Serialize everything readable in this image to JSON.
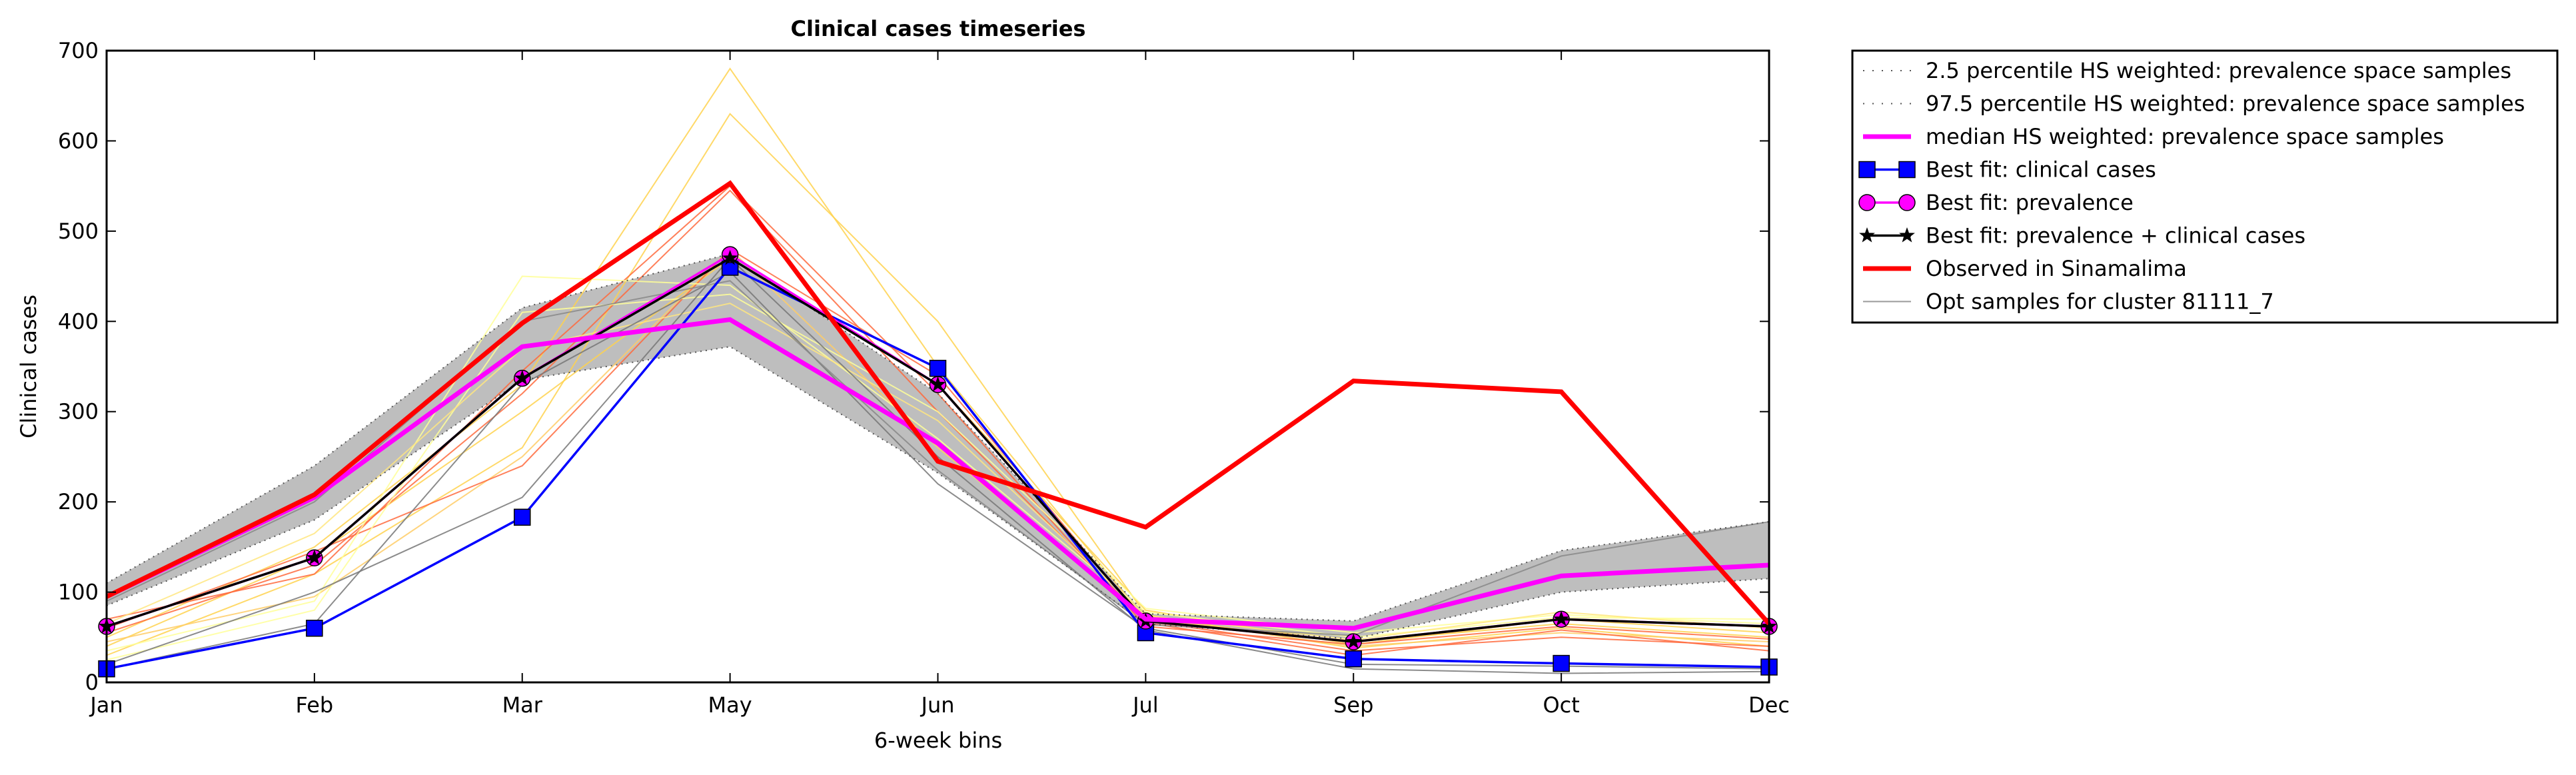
{
  "chart_data": {
    "type": "line",
    "title": "Clinical cases timeseries",
    "xlabel": "6-week bins",
    "ylabel": "Clinical cases",
    "categories": [
      "Jan",
      "Feb",
      "Mar",
      "May",
      "Jun",
      "Jul",
      "Sep",
      "Oct",
      "Dec"
    ],
    "ylim": [
      0,
      700
    ],
    "yticks": [
      0,
      100,
      200,
      300,
      400,
      500,
      600,
      700
    ],
    "grid": false,
    "legend_position": "outside-top-right",
    "band": {
      "lower": [
        85,
        180,
        335,
        372,
        232,
        65,
        48,
        100,
        115
      ],
      "upper": [
        110,
        240,
        415,
        475,
        320,
        76,
        68,
        146,
        178
      ],
      "color": "#bebebe"
    },
    "samples": [
      {
        "color": "#ffd24d",
        "values": [
          40,
          140,
          300,
          470,
          330,
          80,
          42,
          70,
          55
        ]
      },
      {
        "color": "#ffd24d",
        "values": [
          30,
          120,
          260,
          630,
          400,
          75,
          38,
          60,
          40
        ]
      },
      {
        "color": "#ffd24d",
        "values": [
          50,
          150,
          330,
          680,
          350,
          70,
          45,
          65,
          50
        ]
      },
      {
        "color": "#ffcc66",
        "values": [
          45,
          95,
          250,
          480,
          260,
          72,
          40,
          55,
          45
        ]
      },
      {
        "color": "#ff6a3d",
        "values": [
          55,
          130,
          320,
          545,
          300,
          68,
          35,
          50,
          40
        ]
      },
      {
        "color": "#ff6a3d",
        "values": [
          60,
          145,
          240,
          480,
          340,
          66,
          30,
          58,
          35
        ]
      },
      {
        "color": "#ff6a3d",
        "values": [
          70,
          120,
          345,
          550,
          320,
          62,
          42,
          62,
          48
        ]
      },
      {
        "color": "#ffff99",
        "values": [
          35,
          90,
          450,
          440,
          270,
          78,
          50,
          72,
          70
        ]
      },
      {
        "color": "#ffff99",
        "values": [
          25,
          80,
          410,
          430,
          300,
          82,
          55,
          75,
          65
        ]
      },
      {
        "color": "#ffe680",
        "values": [
          65,
          165,
          370,
          420,
          290,
          74,
          47,
          78,
          60
        ]
      },
      {
        "color": "#777777",
        "values": [
          20,
          100,
          205,
          470,
          250,
          58,
          15,
          10,
          12
        ]
      },
      {
        "color": "#777777",
        "values": [
          15,
          65,
          330,
          455,
          220,
          60,
          20,
          18,
          15
        ]
      },
      {
        "color": "#888888",
        "values": [
          90,
          200,
          400,
          445,
          235,
          64,
          52,
          140,
          178
        ]
      }
    ],
    "series": [
      {
        "name": "2.5 percentile HS weighted: prevalence space samples",
        "color": "#555555",
        "style": "dotted",
        "values": [
          85,
          180,
          335,
          372,
          232,
          65,
          48,
          100,
          115
        ]
      },
      {
        "name": "97.5 percentile HS weighted: prevalence space samples",
        "color": "#555555",
        "style": "dotted",
        "values": [
          110,
          240,
          415,
          475,
          320,
          76,
          68,
          146,
          178
        ]
      },
      {
        "name": "median HS weighted: prevalence space samples",
        "color": "#ff00ff",
        "style": "solid-thick",
        "values": [
          95,
          205,
          372,
          402,
          265,
          70,
          60,
          118,
          130
        ]
      },
      {
        "name": "Best fit: clinical cases",
        "color": "#0000ff",
        "marker": "square",
        "values": [
          15,
          60,
          183,
          460,
          348,
          55,
          26,
          21,
          17
        ]
      },
      {
        "name": "Best fit: prevalence",
        "color": "#ff00ff",
        "marker": "circle",
        "values": [
          62,
          138,
          337,
          474,
          330,
          68,
          45,
          70,
          62
        ]
      },
      {
        "name": "Best fit: prevalence + clinical cases",
        "color": "#000000",
        "marker": "star",
        "values": [
          62,
          138,
          337,
          470,
          330,
          68,
          45,
          70,
          62
        ]
      },
      {
        "name": "Observed in Sinamalima",
        "color": "#ff0000",
        "style": "solid-thick",
        "values": [
          95,
          208,
          398,
          553,
          245,
          172,
          334,
          322,
          65
        ]
      },
      {
        "name": "Opt samples for cluster 81111_7",
        "color": "#999999",
        "style": "thin",
        "values": null
      }
    ]
  }
}
